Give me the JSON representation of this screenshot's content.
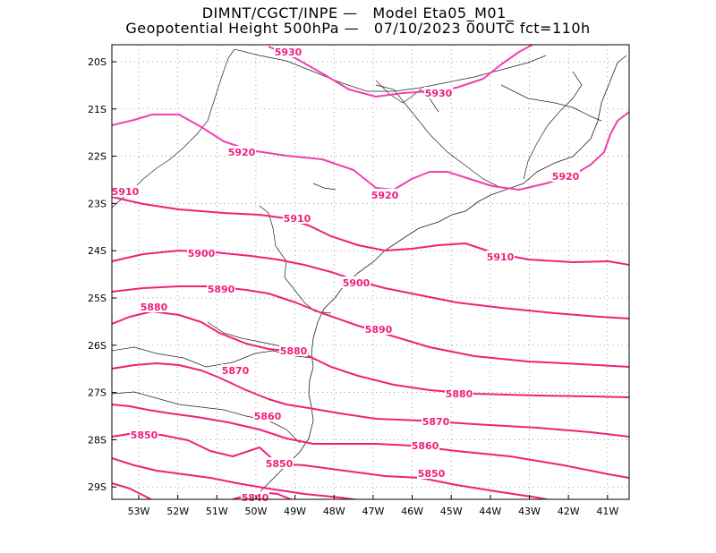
{
  "header": {
    "line1": "DIMNT/CGCT/INPE —   Model Eta05_M01_",
    "line2": "Geopotential Height 500hPa —   07/10/2023 00UTC fct=110h"
  },
  "colors": {
    "contour": "#f0207a",
    "contour_light": "#f040b0",
    "coast": "#222222",
    "grid": "#777777"
  },
  "axes": {
    "lat_labels": [
      "20S",
      "21S",
      "22S",
      "23S",
      "24S",
      "25S",
      "26S",
      "27S",
      "28S",
      "29S"
    ],
    "lon_labels": [
      "53W",
      "52W",
      "51W",
      "50W",
      "49W",
      "48W",
      "47W",
      "46W",
      "45W",
      "44W",
      "43W",
      "42W",
      "41W"
    ],
    "lat_values": [
      -20,
      -21,
      -22,
      -23,
      -24,
      -25,
      -26,
      -27,
      -28,
      -29
    ],
    "lon_values": [
      -53,
      -52,
      -51,
      -50,
      -49,
      -48,
      -47,
      -46,
      -45,
      -44,
      -43,
      -42,
      -41
    ]
  },
  "contour_labels": [
    "5930",
    "5930",
    "5920",
    "5920",
    "5920",
    "5910",
    "5910",
    "5910",
    "5900",
    "5900",
    "5890",
    "5890",
    "5880",
    "5880",
    "5880",
    "5870",
    "5870",
    "5860",
    "5860",
    "5850",
    "5850",
    "5850",
    "5840"
  ],
  "contour_levels": [
    5840,
    5850,
    5860,
    5870,
    5880,
    5890,
    5900,
    5910,
    5920,
    5930
  ]
}
